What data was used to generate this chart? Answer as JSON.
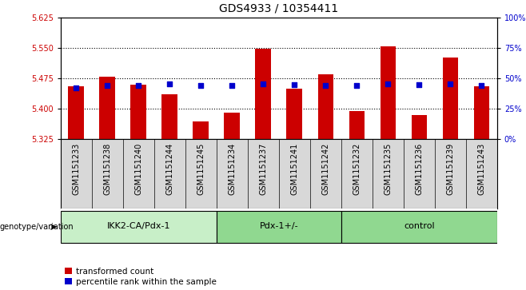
{
  "title": "GDS4933 / 10354411",
  "samples": [
    "GSM1151233",
    "GSM1151238",
    "GSM1151240",
    "GSM1151244",
    "GSM1151245",
    "GSM1151234",
    "GSM1151237",
    "GSM1151241",
    "GSM1151242",
    "GSM1151232",
    "GSM1151235",
    "GSM1151236",
    "GSM1151239",
    "GSM1151243"
  ],
  "bar_values": [
    5.455,
    5.478,
    5.46,
    5.435,
    5.368,
    5.39,
    5.548,
    5.45,
    5.485,
    5.395,
    5.553,
    5.385,
    5.527,
    5.455
  ],
  "dot_values": [
    5.452,
    5.458,
    5.458,
    5.462,
    5.458,
    5.458,
    5.462,
    5.46,
    5.458,
    5.458,
    5.462,
    5.46,
    5.462,
    5.458
  ],
  "bar_bottom": 5.325,
  "ymin": 5.325,
  "ymax": 5.625,
  "yticks_major": [
    5.325,
    5.4,
    5.475,
    5.55,
    5.625
  ],
  "yticks_grid": [
    5.4,
    5.475,
    5.55
  ],
  "y2min": 0,
  "y2max": 100,
  "y2ticks": [
    0,
    25,
    50,
    75,
    100
  ],
  "groups": [
    {
      "label": "IKK2-CA/Pdx-1",
      "start": 0,
      "end": 5,
      "color": "#c8efc8"
    },
    {
      "label": "Pdx-1+/-",
      "start": 5,
      "end": 9,
      "color": "#90d890"
    },
    {
      "label": "control",
      "start": 9,
      "end": 14,
      "color": "#90d890"
    }
  ],
  "bar_color": "#cc0000",
  "dot_color": "#0000cc",
  "bg_color": "#d8d8d8",
  "plot_bg": "#ffffff",
  "ylabel_left_color": "#cc0000",
  "ylabel_right_color": "#0000cc",
  "title_fontsize": 10,
  "tick_fontsize": 7,
  "bar_width": 0.5,
  "legend_red": "transformed count",
  "legend_blue": "percentile rank within the sample",
  "genotype_label": "genotype/variation"
}
